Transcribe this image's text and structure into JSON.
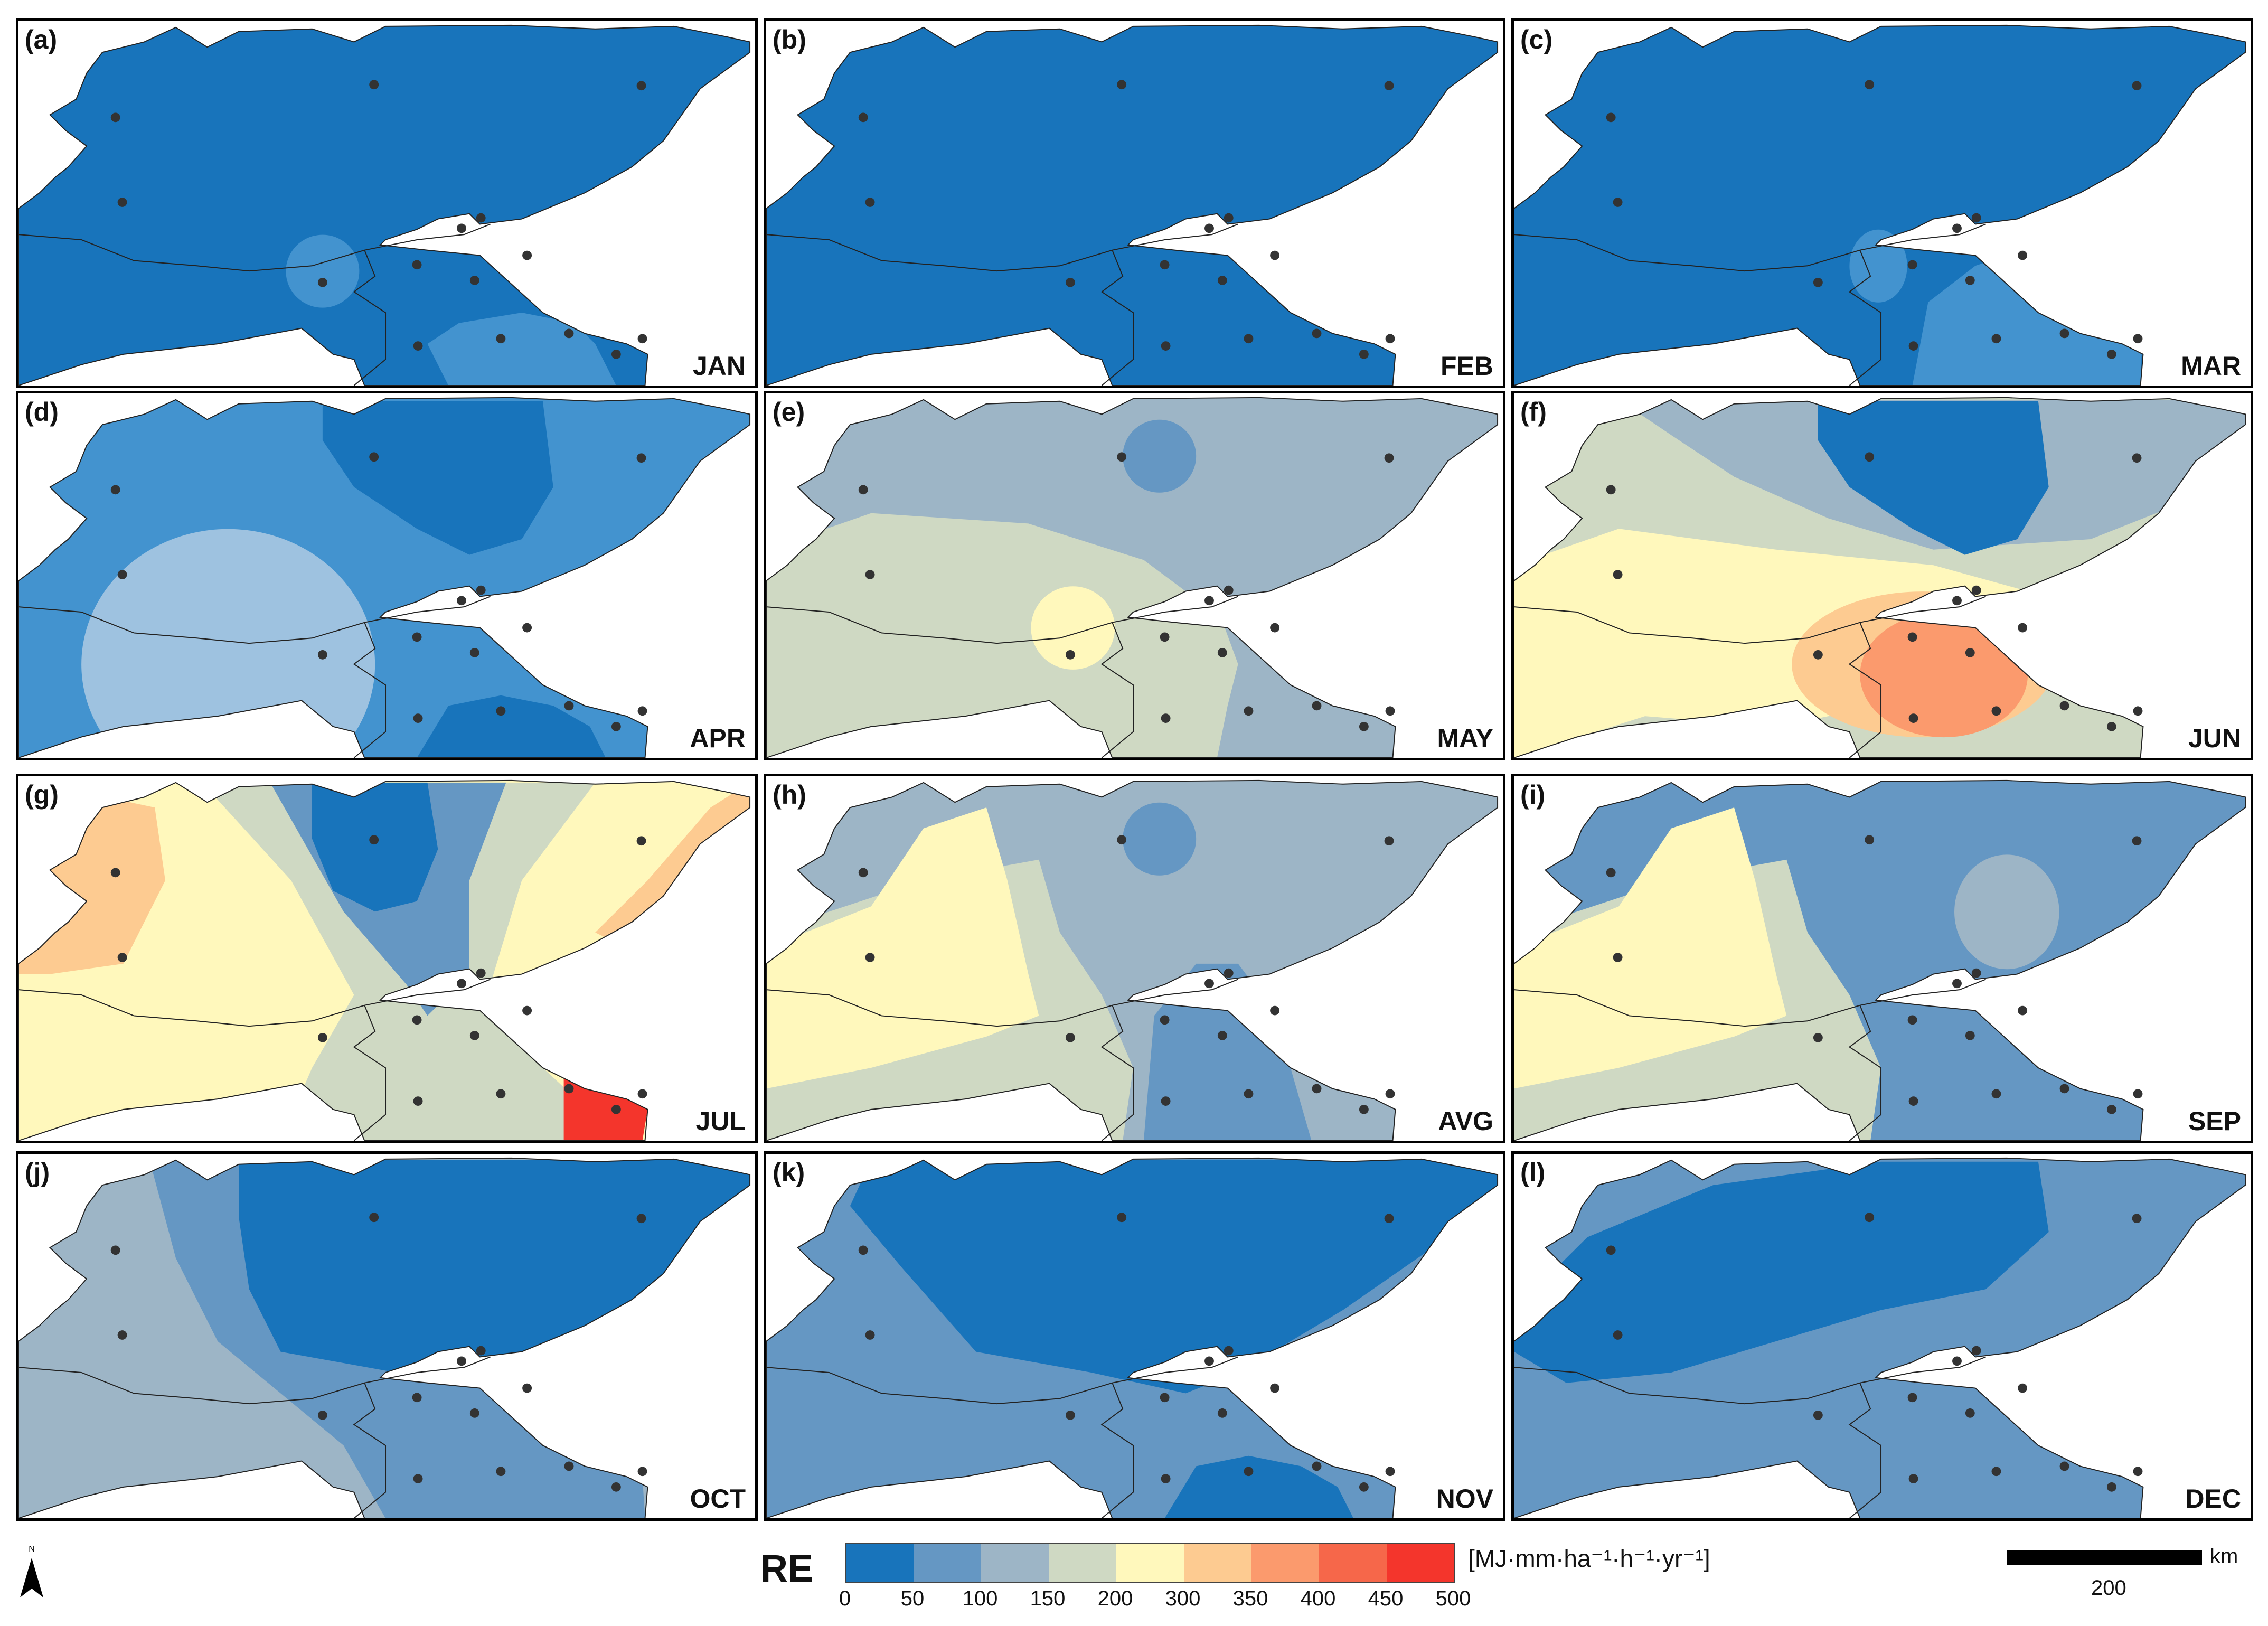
{
  "panels": [
    {
      "label": "(a)",
      "month": "JAN",
      "base": "#1874bb",
      "regions": [
        {
          "color": "#4393cf",
          "shape": "islandA"
        },
        {
          "color": "#4393cf",
          "shape": "southA"
        }
      ],
      "dots": "std"
    },
    {
      "label": "(b)",
      "month": "FEB",
      "base": "#1874bb",
      "regions": [],
      "dots": "std"
    },
    {
      "label": "(c)",
      "month": "MAR",
      "base": "#1874bb",
      "regions": [
        {
          "color": "#4393cf",
          "shape": "islandC"
        },
        {
          "color": "#4393cf",
          "shape": "eastC"
        }
      ],
      "dots": "std"
    },
    {
      "label": "(d)",
      "month": "APR",
      "base": "#4393cf",
      "regions": [
        {
          "color": "#1874bb",
          "shape": "blobNE"
        },
        {
          "color": "#9ec2e0",
          "shape": "bigCircleW"
        },
        {
          "color": "#1874bb",
          "shape": "southD"
        }
      ],
      "dots": "std"
    },
    {
      "label": "(e)",
      "month": "MAY",
      "base": "#9db5c6",
      "regions": [
        {
          "color": "#cfd9c3",
          "shape": "westBand"
        },
        {
          "color": "#6597c3",
          "shape": "smallNE"
        },
        {
          "color": "#fff8bc",
          "shape": "smallMid"
        }
      ],
      "dots": "std"
    },
    {
      "label": "(f)",
      "month": "JUN",
      "base": "#cfd9c3",
      "regions": [
        {
          "color": "#9db5c6",
          "shape": "northArc"
        },
        {
          "color": "#1874bb",
          "shape": "blobNE"
        },
        {
          "color": "#fff8bc",
          "shape": "yellowW"
        },
        {
          "color": "#fdcb91",
          "shape": "orangeOval"
        },
        {
          "color": "#fb9a6d",
          "shape": "orangeCore"
        }
      ],
      "dots": "std"
    },
    {
      "label": "(g)",
      "month": "JUL",
      "base": "#fff8bc",
      "regions": [
        {
          "color": "#cfd9c3",
          "shape": "midBand"
        },
        {
          "color": "#6597c3",
          "shape": "midBand2"
        },
        {
          "color": "#1874bb",
          "shape": "blobNE2"
        },
        {
          "color": "#fdcb91",
          "shape": "westOrange"
        },
        {
          "color": "#fdcb91",
          "shape": "eastStrip"
        },
        {
          "color": "#f4352c",
          "shape": "redSE"
        }
      ],
      "dots": "std"
    },
    {
      "label": "(h)",
      "month": "AVG",
      "base": "#9db5c6",
      "regions": [
        {
          "color": "#cfd9c3",
          "shape": "westBand2"
        },
        {
          "color": "#fff8bc",
          "shape": "yellowW2"
        },
        {
          "color": "#6597c3",
          "shape": "southBlue"
        },
        {
          "color": "#6597c3",
          "shape": "smallNE"
        }
      ],
      "dots": "std"
    },
    {
      "label": "(i)",
      "month": "SEP",
      "base": "#6597c3",
      "regions": [
        {
          "color": "#cfd9c3",
          "shape": "westBand2"
        },
        {
          "color": "#fff8bc",
          "shape": "yellowW2"
        },
        {
          "color": "#9db5c6",
          "shape": "roundN"
        }
      ],
      "dots": "std"
    },
    {
      "label": "(j)",
      "month": "OCT",
      "base": "#9db5c6",
      "regions": [
        {
          "color": "#6597c3",
          "shape": "eastBig"
        },
        {
          "color": "#1874bb",
          "shape": "eastCore"
        }
      ],
      "dots": "std"
    },
    {
      "label": "(k)",
      "month": "NOV",
      "base": "#6597c3",
      "regions": [
        {
          "color": "#1874bb",
          "shape": "northBand"
        },
        {
          "color": "#1874bb",
          "shape": "southD"
        }
      ],
      "dots": "std"
    },
    {
      "label": "(l)",
      "month": "DEC",
      "base": "#6597c3",
      "regions": [
        {
          "color": "#1874bb",
          "shape": "nwBand"
        }
      ],
      "dots": "std"
    }
  ],
  "legend": {
    "title": "RE",
    "unit": "[MJ·mm·ha⁻¹·h⁻¹·yr⁻¹]",
    "colors": [
      "#1874bb",
      "#6597c3",
      "#9db5c6",
      "#cfd9c3",
      "#fff8bc",
      "#fdcb91",
      "#fb9a6d",
      "#f6674a",
      "#f4352c"
    ],
    "ticks": [
      "0",
      "50",
      "100",
      "150",
      "200",
      "300",
      "350",
      "400",
      "450",
      "500"
    ]
  },
  "scale": {
    "value": "200",
    "unit": "km"
  },
  "north_icon": "north-arrow-icon"
}
